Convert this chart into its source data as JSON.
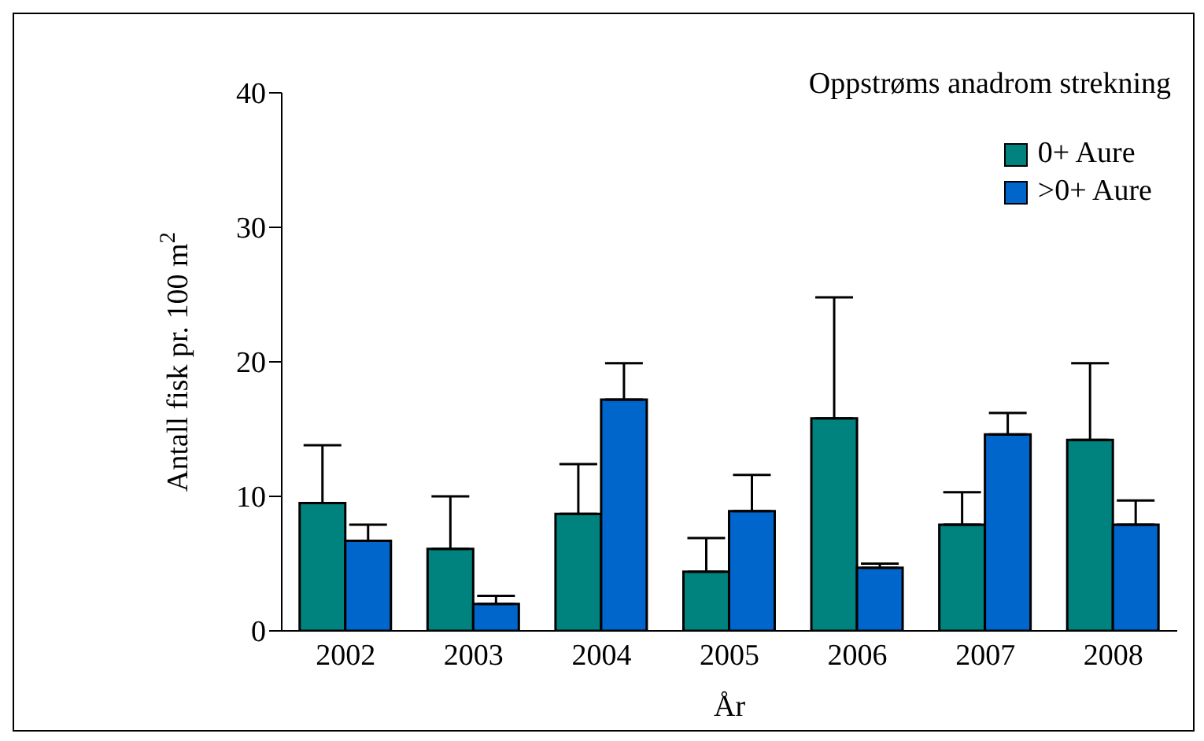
{
  "chart_data": {
    "type": "bar",
    "title": "Oppstrøms anadrom strekning",
    "xlabel": "År",
    "ylabel": "Antall fisk pr. 100 m$^{2}$",
    "categories": [
      "2002",
      "2003",
      "2004",
      "2005",
      "2006",
      "2007",
      "2008"
    ],
    "series": [
      {
        "name": "0+ Aure",
        "color": "#00827f",
        "values": [
          9.5,
          6.1,
          8.7,
          4.4,
          15.8,
          7.9,
          14.2
        ],
        "errors": [
          [
            9.5,
            13.8
          ],
          [
            6.1,
            10.0
          ],
          [
            8.7,
            12.4
          ],
          [
            4.4,
            6.9
          ],
          [
            15.8,
            24.8
          ],
          [
            7.9,
            10.3
          ],
          [
            14.2,
            19.9
          ]
        ]
      },
      {
        "name": ">0+ Aure",
        "color": "#0066cc",
        "values": [
          6.7,
          2.0,
          17.2,
          8.9,
          4.7,
          14.6,
          7.9
        ],
        "errors": [
          [
            6.7,
            7.9
          ],
          [
            2.0,
            2.6
          ],
          [
            17.2,
            19.9
          ],
          [
            8.9,
            11.6
          ],
          [
            4.7,
            5.0
          ],
          [
            14.6,
            16.2
          ],
          [
            7.9,
            9.7
          ]
        ]
      }
    ],
    "ylim": [
      0,
      40
    ],
    "yticks": [
      0,
      10,
      20,
      30,
      40
    ],
    "grid": false,
    "legend": "top right"
  }
}
